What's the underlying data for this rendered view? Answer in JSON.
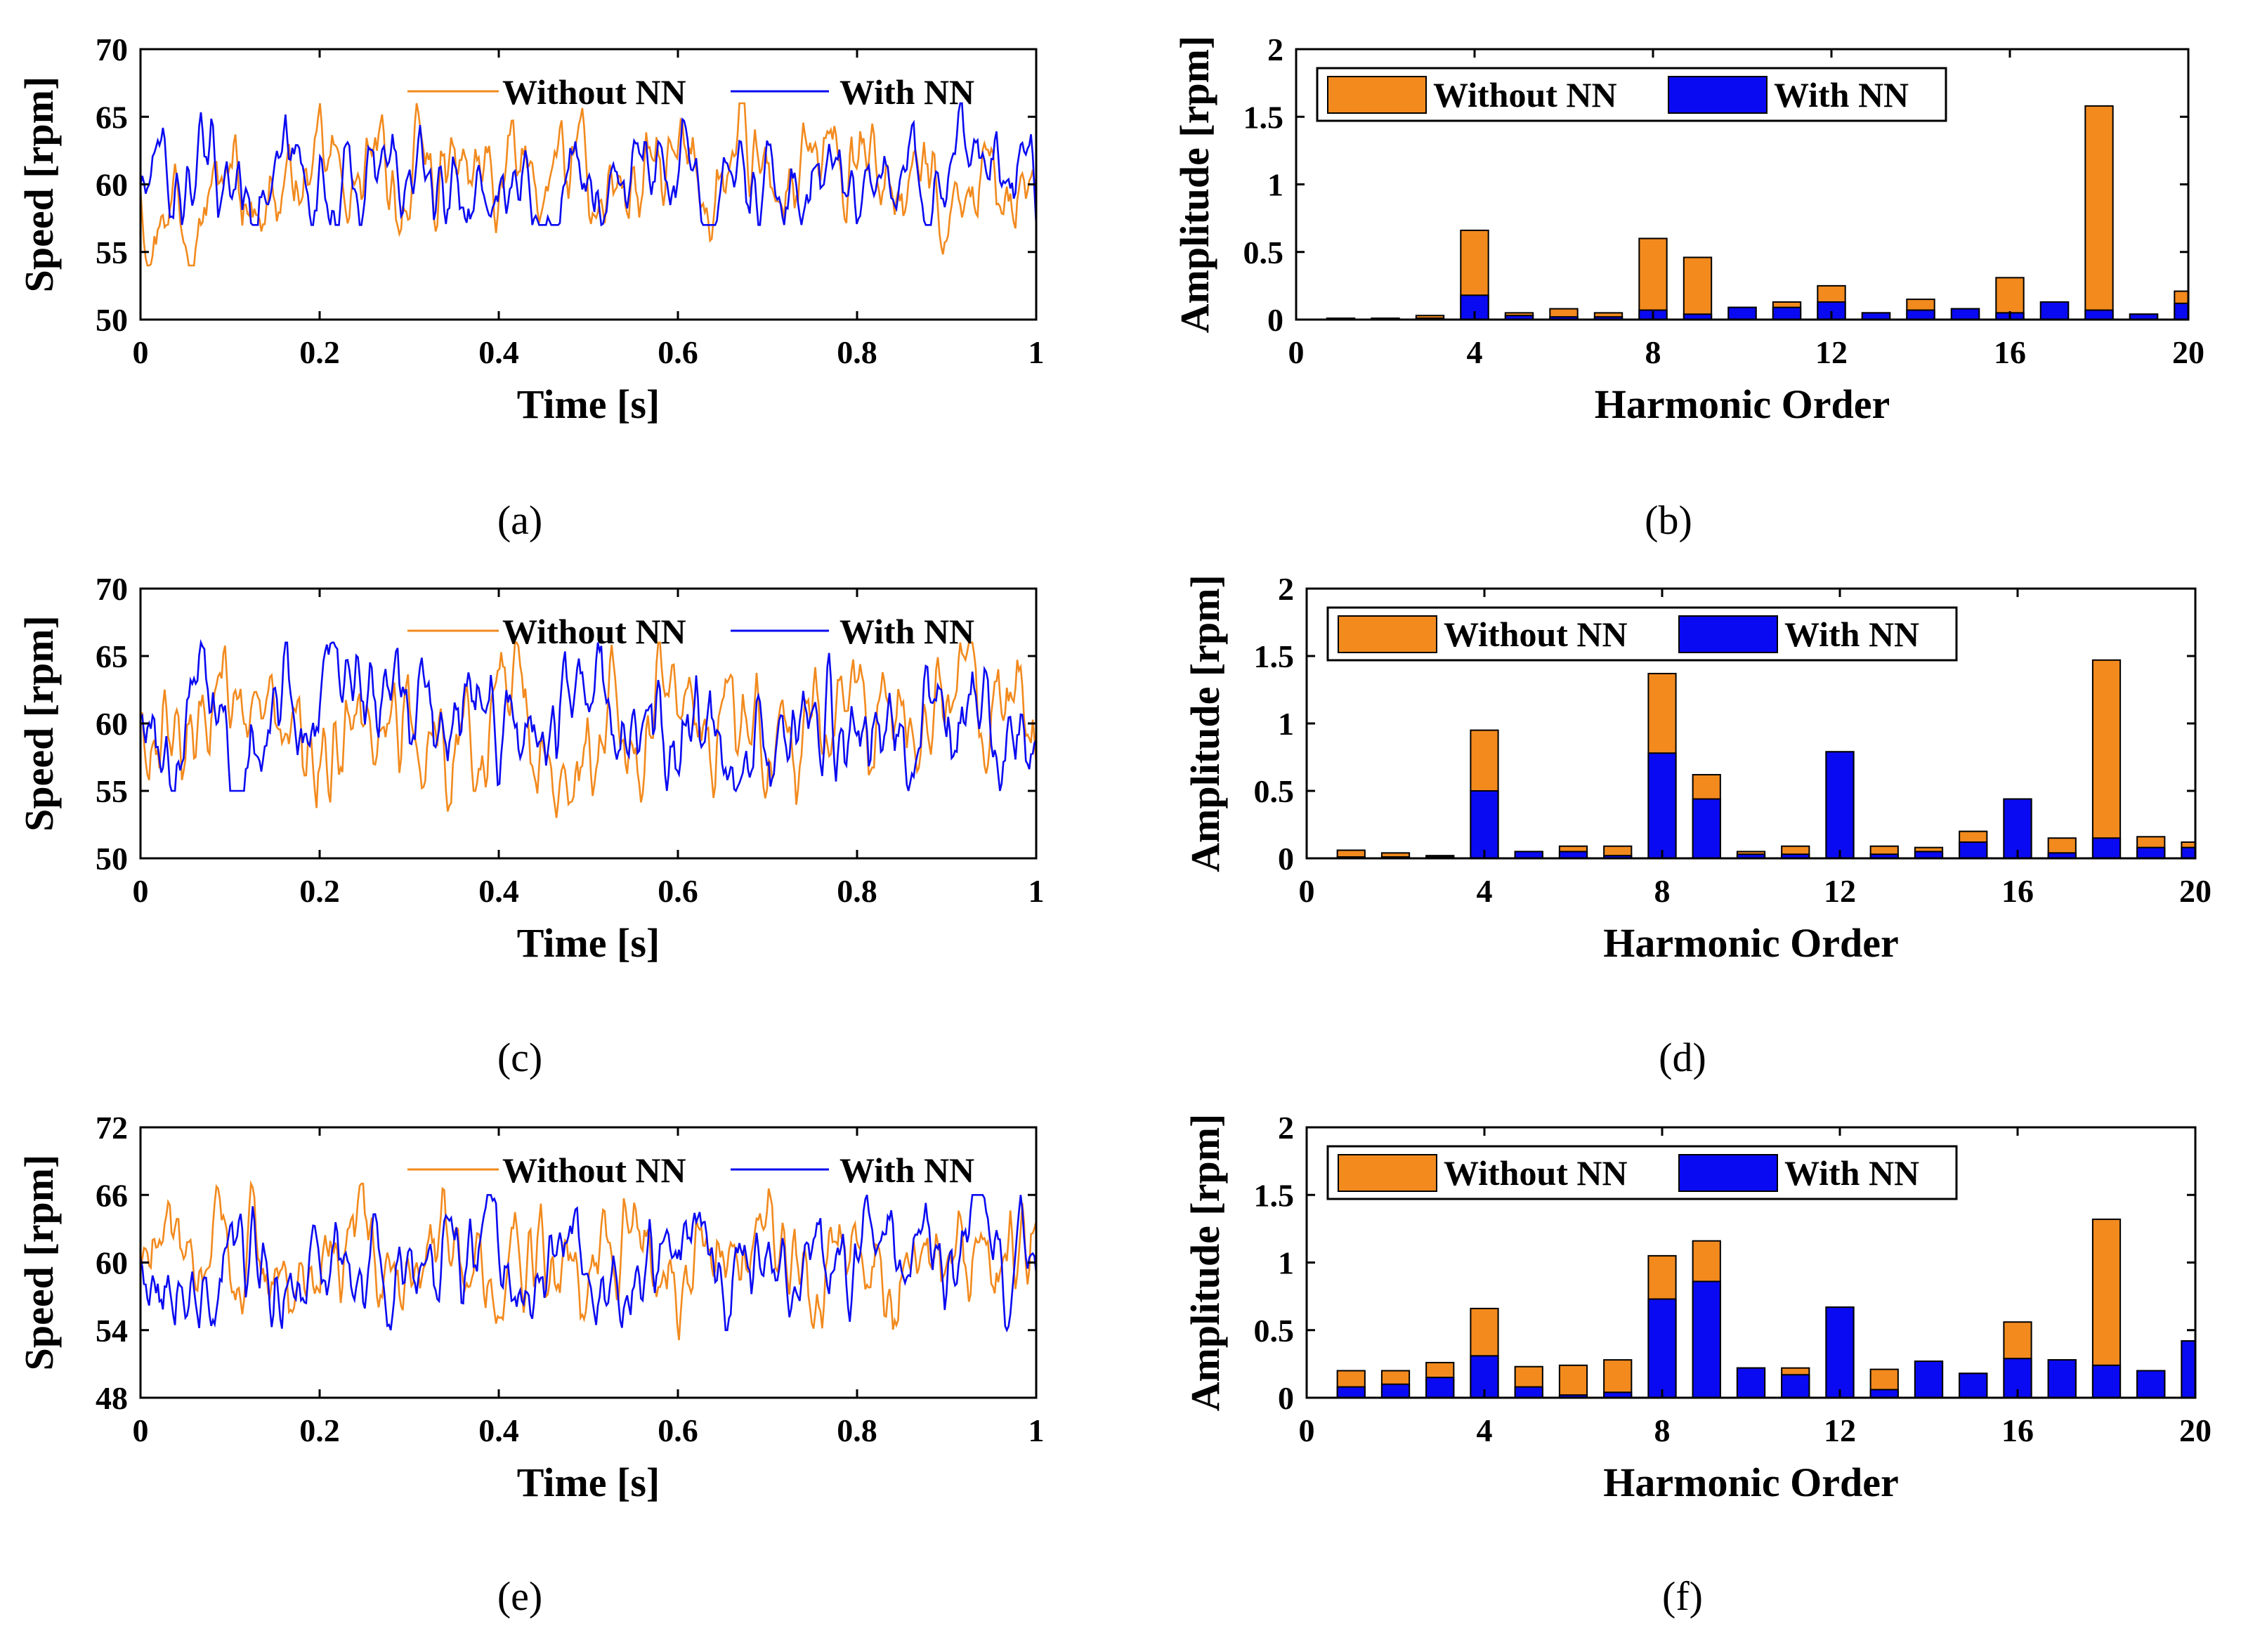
{
  "colors": {
    "without": "#f28a1e",
    "with": "#0a0af2",
    "axis": "#000000"
  },
  "chart_data": [
    {
      "type": "line",
      "caption": "(a)",
      "title": "",
      "xlabel": "Time [s]",
      "ylabel": "Speed [rpm]",
      "xlim": [
        0,
        1
      ],
      "ylim": [
        50,
        70
      ],
      "xticks": [
        0,
        0.2,
        0.4,
        0.6,
        0.8,
        1
      ],
      "xtick_labels": [
        "0",
        "0.2",
        "0.4",
        "0.6",
        "0.8",
        "1"
      ],
      "yticks": [
        50,
        55,
        60,
        65,
        70
      ],
      "ytick_labels": [
        "50",
        "55",
        "60",
        "65",
        "70"
      ],
      "legend": {
        "placement": "top-right",
        "entries": [
          "Without NN",
          "With NN"
        ]
      },
      "series": [
        {
          "name": "Without NN",
          "color": "#f28a1e",
          "mean": 60,
          "amplitude": 2.4,
          "min": 54,
          "max": 66
        },
        {
          "name": "With NN",
          "color": "#0a0af2",
          "mean": 60,
          "amplitude": 2.1,
          "min": 57,
          "max": 66
        }
      ]
    },
    {
      "type": "bar",
      "caption": "(b)",
      "title": "",
      "xlabel": "Harmonic Order",
      "ylabel": "Amplitude [rpm]",
      "xlim": [
        0,
        20
      ],
      "ylim": [
        0,
        2
      ],
      "xticks": [
        0,
        4,
        8,
        12,
        16,
        20
      ],
      "xtick_labels": [
        "0",
        "4",
        "8",
        "12",
        "16",
        "20"
      ],
      "yticks": [
        0,
        0.5,
        1,
        1.5,
        2
      ],
      "ytick_labels": [
        "0",
        "0.5",
        "1",
        "1.5",
        "2"
      ],
      "legend": {
        "placement": "top-left",
        "entries": [
          "Without NN",
          "With NN"
        ]
      },
      "categories": [
        1,
        2,
        3,
        4,
        5,
        6,
        7,
        8,
        9,
        10,
        11,
        12,
        13,
        14,
        15,
        16,
        17,
        18,
        19,
        20
      ],
      "series": [
        {
          "name": "Without NN",
          "color": "#f28a1e",
          "values": [
            0.01,
            0.01,
            0.03,
            0.66,
            0.05,
            0.08,
            0.05,
            0.6,
            0.46,
            0.08,
            0.13,
            0.25,
            0.04,
            0.15,
            0.06,
            0.31,
            0.12,
            1.58,
            0.03,
            0.21
          ]
        },
        {
          "name": "With NN",
          "color": "#0a0af2",
          "values": [
            0.005,
            0.005,
            0.01,
            0.18,
            0.03,
            0.02,
            0.02,
            0.07,
            0.04,
            0.09,
            0.09,
            0.13,
            0.05,
            0.07,
            0.08,
            0.05,
            0.13,
            0.07,
            0.04,
            0.12
          ]
        }
      ]
    },
    {
      "type": "line",
      "caption": "(c)",
      "title": "",
      "xlabel": "Time [s]",
      "ylabel": "Speed [rpm]",
      "xlim": [
        0,
        1
      ],
      "ylim": [
        50,
        70
      ],
      "xticks": [
        0,
        0.2,
        0.4,
        0.6,
        0.8,
        1
      ],
      "xtick_labels": [
        "0",
        "0.2",
        "0.4",
        "0.6",
        "0.8",
        "1"
      ],
      "yticks": [
        50,
        55,
        60,
        65,
        70
      ],
      "ytick_labels": [
        "50",
        "55",
        "60",
        "65",
        "70"
      ],
      "legend": {
        "placement": "top-right",
        "entries": [
          "Without NN",
          "With NN"
        ]
      },
      "series": [
        {
          "name": "Without NN",
          "color": "#f28a1e",
          "mean": 60,
          "amplitude": 2.7,
          "min": 53,
          "max": 66
        },
        {
          "name": "With NN",
          "color": "#0a0af2",
          "mean": 60,
          "amplitude": 2.6,
          "min": 55,
          "max": 66
        }
      ]
    },
    {
      "type": "bar",
      "caption": "(d)",
      "title": "",
      "xlabel": "Harmonic Order",
      "ylabel": "Amplitude [rpm]",
      "xlim": [
        0,
        20
      ],
      "ylim": [
        0,
        2
      ],
      "xticks": [
        0,
        4,
        8,
        12,
        16,
        20
      ],
      "xtick_labels": [
        "0",
        "4",
        "8",
        "12",
        "16",
        "20"
      ],
      "yticks": [
        0,
        0.5,
        1,
        1.5,
        2
      ],
      "ytick_labels": [
        "0",
        "0.5",
        "1",
        "1.5",
        "2"
      ],
      "legend": {
        "placement": "top-left",
        "entries": [
          "Without NN",
          "With NN"
        ]
      },
      "categories": [
        1,
        2,
        3,
        4,
        5,
        6,
        7,
        8,
        9,
        10,
        11,
        12,
        13,
        14,
        15,
        16,
        17,
        18,
        19,
        20
      ],
      "series": [
        {
          "name": "Without NN",
          "color": "#f28a1e",
          "values": [
            0.06,
            0.04,
            0.02,
            0.95,
            0.05,
            0.09,
            0.09,
            1.37,
            0.62,
            0.05,
            0.09,
            0.05,
            0.09,
            0.08,
            0.2,
            0.05,
            0.15,
            1.47,
            0.16,
            0.12
          ]
        },
        {
          "name": "With NN",
          "color": "#0a0af2",
          "values": [
            0.01,
            0.01,
            0.01,
            0.5,
            0.05,
            0.05,
            0.02,
            0.78,
            0.44,
            0.03,
            0.03,
            0.79,
            0.03,
            0.05,
            0.12,
            0.44,
            0.04,
            0.15,
            0.08,
            0.08
          ]
        }
      ]
    },
    {
      "type": "line",
      "caption": "(e)",
      "title": "",
      "xlabel": "Time [s]",
      "ylabel": "Speed [rpm]",
      "xlim": [
        0,
        1
      ],
      "ylim": [
        48,
        72
      ],
      "xticks": [
        0,
        0.2,
        0.4,
        0.6,
        0.8,
        1
      ],
      "xtick_labels": [
        "0",
        "0.2",
        "0.4",
        "0.6",
        "0.8",
        "1"
      ],
      "yticks": [
        48,
        54,
        60,
        66,
        72
      ],
      "ytick_labels": [
        "48",
        "54",
        "60",
        "66",
        "72"
      ],
      "legend": {
        "placement": "top-right",
        "entries": [
          "Without NN",
          "With NN"
        ]
      },
      "series": [
        {
          "name": "Without NN",
          "color": "#f28a1e",
          "mean": 60,
          "amplitude": 2.8,
          "min": 53,
          "max": 67
        },
        {
          "name": "With NN",
          "color": "#0a0af2",
          "mean": 60,
          "amplitude": 2.7,
          "min": 54,
          "max": 66
        }
      ]
    },
    {
      "type": "bar",
      "caption": "(f)",
      "title": "",
      "xlabel": "Harmonic Order",
      "ylabel": "Amplitude [rpm]",
      "xlim": [
        0,
        20
      ],
      "ylim": [
        0,
        2
      ],
      "xticks": [
        0,
        4,
        8,
        12,
        16,
        20
      ],
      "xtick_labels": [
        "0",
        "4",
        "8",
        "12",
        "16",
        "20"
      ],
      "yticks": [
        0,
        0.5,
        1,
        1.5,
        2
      ],
      "ytick_labels": [
        "0",
        "0.5",
        "1",
        "1.5",
        "2"
      ],
      "legend": {
        "placement": "top-left",
        "entries": [
          "Without NN",
          "With NN"
        ]
      },
      "categories": [
        1,
        2,
        3,
        4,
        5,
        6,
        7,
        8,
        9,
        10,
        11,
        12,
        13,
        14,
        15,
        16,
        17,
        18,
        19,
        20
      ],
      "series": [
        {
          "name": "Without NN",
          "color": "#f28a1e",
          "values": [
            0.2,
            0.2,
            0.26,
            0.66,
            0.23,
            0.24,
            0.28,
            1.05,
            1.16,
            0.22,
            0.22,
            0.66,
            0.21,
            0.27,
            0.18,
            0.56,
            0.28,
            1.32,
            0.2,
            0.42
          ]
        },
        {
          "name": "With NN",
          "color": "#0a0af2",
          "values": [
            0.08,
            0.1,
            0.15,
            0.31,
            0.08,
            0.02,
            0.04,
            0.73,
            0.86,
            0.22,
            0.17,
            0.67,
            0.06,
            0.27,
            0.18,
            0.29,
            0.28,
            0.24,
            0.2,
            0.42
          ]
        }
      ]
    }
  ]
}
